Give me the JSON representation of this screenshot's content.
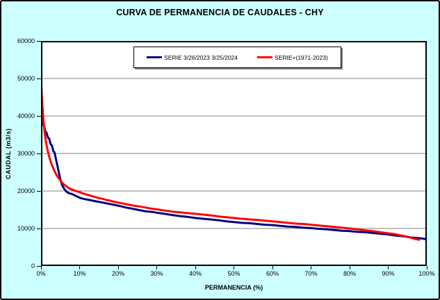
{
  "window": {
    "background_color": "#CCFFFF",
    "border_color": "#000000",
    "plot_background": "#FFFFFF",
    "gridline_color": "#808080"
  },
  "chart_data": {
    "type": "line",
    "title": "CURVA DE PERMANENCIA DE CAUDALES - CHY",
    "xlabel": "PERMANENCIA (%)",
    "ylabel": "CAUDAL (m3/s)",
    "xlim": [
      0,
      100
    ],
    "ylim": [
      0,
      60000
    ],
    "x_tick_labels": [
      "0%",
      "10%",
      "20%",
      "30%",
      "40%",
      "50%",
      "60%",
      "70%",
      "80%",
      "90%",
      "100%"
    ],
    "x_tick_values": [
      0,
      10,
      20,
      30,
      40,
      50,
      60,
      70,
      80,
      90,
      100
    ],
    "y_tick_labels": [
      "0",
      "10000",
      "20000",
      "30000",
      "40000",
      "50000",
      "60000"
    ],
    "y_tick_values": [
      0,
      10000,
      20000,
      30000,
      40000,
      50000,
      60000
    ],
    "grid": "horizontal",
    "legend_position": "top-center",
    "series": [
      {
        "name": "SERIE 3/26/2023 3/25/2024",
        "color": "#000080",
        "points": [
          [
            0,
            39200
          ],
          [
            0.3,
            38900
          ],
          [
            0.5,
            37700
          ],
          [
            0.8,
            37400
          ],
          [
            1.1,
            35900
          ],
          [
            1.4,
            35600
          ],
          [
            1.8,
            34200
          ],
          [
            2.1,
            34000
          ],
          [
            2.5,
            32400
          ],
          [
            2.8,
            32200
          ],
          [
            3.2,
            30600
          ],
          [
            3.5,
            30300
          ],
          [
            3.9,
            28400
          ],
          [
            4.3,
            26500
          ],
          [
            4.7,
            24500
          ],
          [
            5.1,
            22800
          ],
          [
            5.5,
            21500
          ],
          [
            6,
            20600
          ],
          [
            6.5,
            19900
          ],
          [
            7.2,
            19400
          ],
          [
            8,
            19200
          ],
          [
            8.6,
            18900
          ],
          [
            10,
            18200
          ],
          [
            11,
            17900
          ],
          [
            12,
            17700
          ],
          [
            13,
            17500
          ],
          [
            14,
            17300
          ],
          [
            15,
            17100
          ],
          [
            16,
            16900
          ],
          [
            17,
            16700
          ],
          [
            18,
            16500
          ],
          [
            19,
            16300
          ],
          [
            20,
            16100
          ],
          [
            22,
            15600
          ],
          [
            24,
            15200
          ],
          [
            26,
            14800
          ],
          [
            27,
            14600
          ],
          [
            28,
            14500
          ],
          [
            29,
            14400
          ],
          [
            30,
            14200
          ],
          [
            32,
            13900
          ],
          [
            34,
            13600
          ],
          [
            36,
            13300
          ],
          [
            38,
            13100
          ],
          [
            40,
            12800
          ],
          [
            42,
            12600
          ],
          [
            44,
            12400
          ],
          [
            46,
            12200
          ],
          [
            48,
            11900
          ],
          [
            50,
            11700
          ],
          [
            52,
            11500
          ],
          [
            54,
            11400
          ],
          [
            56,
            11200
          ],
          [
            58,
            11000
          ],
          [
            60,
            10900
          ],
          [
            62,
            10700
          ],
          [
            64,
            10500
          ],
          [
            66,
            10400
          ],
          [
            68,
            10200
          ],
          [
            70,
            10100
          ],
          [
            72,
            9900
          ],
          [
            74,
            9800
          ],
          [
            76,
            9600
          ],
          [
            78,
            9400
          ],
          [
            80,
            9300
          ],
          [
            82,
            9100
          ],
          [
            84,
            9000
          ],
          [
            86,
            8800
          ],
          [
            88,
            8600
          ],
          [
            90,
            8400
          ],
          [
            92,
            8100
          ],
          [
            94,
            7900
          ],
          [
            96,
            7600
          ],
          [
            98,
            7400
          ],
          [
            99,
            7300
          ],
          [
            100,
            7100
          ]
        ]
      },
      {
        "name": "SERIE=(1971-2023)",
        "color": "#FF0000",
        "points": [
          [
            0,
            51000
          ],
          [
            0.15,
            47000
          ],
          [
            0.3,
            43500
          ],
          [
            0.5,
            40500
          ],
          [
            0.7,
            38000
          ],
          [
            0.9,
            36000
          ],
          [
            1.1,
            34300
          ],
          [
            1.4,
            32400
          ],
          [
            1.7,
            30900
          ],
          [
            2,
            29600
          ],
          [
            2.4,
            28200
          ],
          [
            2.8,
            27000
          ],
          [
            3.2,
            26000
          ],
          [
            3.6,
            25100
          ],
          [
            4,
            24300
          ],
          [
            4.5,
            23500
          ],
          [
            5,
            22800
          ],
          [
            5.5,
            22200
          ],
          [
            6,
            21700
          ],
          [
            6.5,
            21300
          ],
          [
            7,
            20900
          ],
          [
            7.5,
            20600
          ],
          [
            8,
            20400
          ],
          [
            9,
            20000
          ],
          [
            10,
            19700
          ],
          [
            11,
            19300
          ],
          [
            12,
            19000
          ],
          [
            13,
            18700
          ],
          [
            14,
            18400
          ],
          [
            15,
            18100
          ],
          [
            16,
            17900
          ],
          [
            17,
            17600
          ],
          [
            18,
            17400
          ],
          [
            19,
            17100
          ],
          [
            20,
            16900
          ],
          [
            22,
            16500
          ],
          [
            24,
            16100
          ],
          [
            26,
            15800
          ],
          [
            28,
            15400
          ],
          [
            30,
            15100
          ],
          [
            32,
            14800
          ],
          [
            34,
            14500
          ],
          [
            36,
            14300
          ],
          [
            38,
            14100
          ],
          [
            40,
            13900
          ],
          [
            42,
            13700
          ],
          [
            44,
            13500
          ],
          [
            46,
            13200
          ],
          [
            48,
            13000
          ],
          [
            50,
            12800
          ],
          [
            52,
            12600
          ],
          [
            54,
            12400
          ],
          [
            56,
            12300
          ],
          [
            58,
            12100
          ],
          [
            60,
            11900
          ],
          [
            62,
            11700
          ],
          [
            64,
            11500
          ],
          [
            66,
            11300
          ],
          [
            68,
            11200
          ],
          [
            70,
            11000
          ],
          [
            72,
            10800
          ],
          [
            74,
            10600
          ],
          [
            76,
            10400
          ],
          [
            78,
            10200
          ],
          [
            80,
            10000
          ],
          [
            82,
            9800
          ],
          [
            84,
            9500
          ],
          [
            86,
            9300
          ],
          [
            88,
            9000
          ],
          [
            90,
            8700
          ],
          [
            91,
            8600
          ],
          [
            92,
            8400
          ],
          [
            93,
            8200
          ],
          [
            94,
            8000
          ],
          [
            95,
            7800
          ],
          [
            96,
            7500
          ],
          [
            97,
            7200
          ],
          [
            98,
            7000
          ]
        ]
      }
    ]
  }
}
